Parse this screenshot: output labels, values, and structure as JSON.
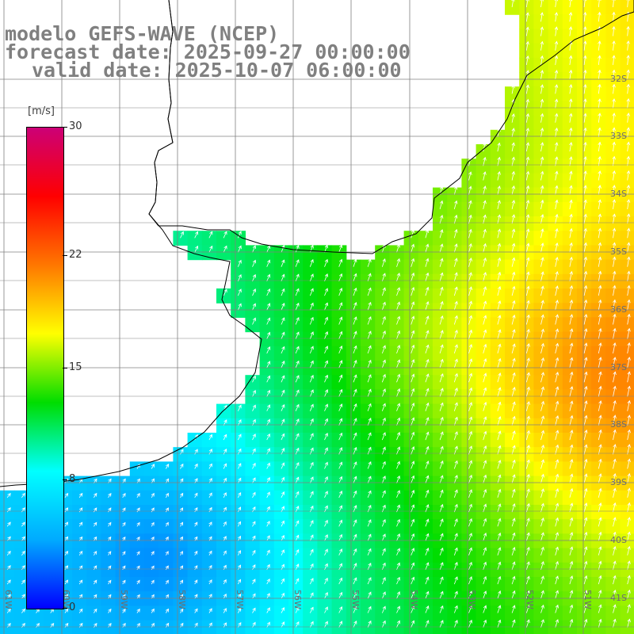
{
  "title": {
    "line1": "modelo GEFS-WAVE (NCEP)",
    "line2": "forecast date: 2025-09-27 00:00:00",
    "line3": "valid date: 2025-10-07 06:00:00"
  },
  "colorbar": {
    "units": "[m/s]",
    "ticks": [
      "30",
      "22",
      "15",
      "8",
      "0"
    ],
    "tick_values": [
      30,
      22,
      15,
      8,
      0
    ],
    "stops": [
      "#0000ff",
      "#00aaff",
      "#00ffff",
      "#00dd00",
      "#ffff00",
      "#ff7700",
      "#ff0000",
      "#cc0077"
    ]
  },
  "map": {
    "lat_labels": [
      "32S",
      "33S",
      "34S",
      "35S",
      "36S",
      "37S",
      "38S",
      "39S",
      "40S",
      "41S"
    ],
    "lon_labels": [
      "61W",
      "60W",
      "59W",
      "58W",
      "57W",
      "56W",
      "55W",
      "54W",
      "53W",
      "52W",
      "51W"
    ],
    "land_color": "#ffffff",
    "coast_color": "#000000",
    "grid_color": "#808080",
    "arrow_color": "#ffffff"
  }
}
